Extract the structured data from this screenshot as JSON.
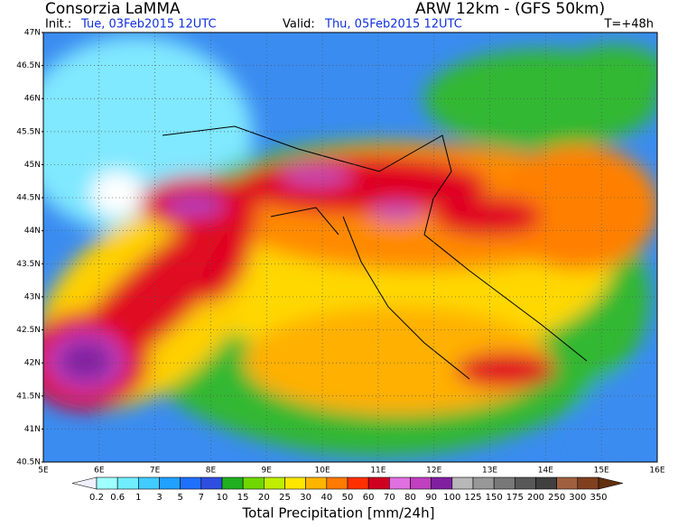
{
  "header": {
    "title": "Consorzia LaMMA",
    "model": "ARW 12km - (GFS 50km)",
    "init_label": "Init.:",
    "init": "Tue, 03Feb2015 12UTC",
    "valid_label": "Valid:",
    "valid": "Thu, 05Feb2015 12UTC",
    "lead": "T=+48h"
  },
  "map": {
    "lat_ticks": [
      "47N",
      "46.5N",
      "46N",
      "45.5N",
      "45N",
      "44.5N",
      "44N",
      "43.5N",
      "43N",
      "42.5N",
      "42N",
      "41.5N",
      "41N",
      "40.5N"
    ],
    "lon_ticks": [
      "5E",
      "6E",
      "7E",
      "8E",
      "9E",
      "10E",
      "11E",
      "12E",
      "13E",
      "14E",
      "15E",
      "16E"
    ]
  },
  "colorbar": {
    "title": "Total Precipitation [mm/24h]",
    "labels": [
      "0.2",
      "0.6",
      "1",
      "3",
      "5",
      "7",
      "10",
      "15",
      "20",
      "25",
      "30",
      "40",
      "50",
      "60",
      "70",
      "80",
      "90",
      "100",
      "125",
      "150",
      "175",
      "200",
      "250",
      "300",
      "350"
    ],
    "colors": [
      "#f0f0ff",
      "#a0ffff",
      "#70eeff",
      "#40ccff",
      "#20a0ff",
      "#2070ff",
      "#2f4ee0",
      "#20b020",
      "#70d800",
      "#c0ee00",
      "#ffe600",
      "#ffb400",
      "#ff7a00",
      "#ff3000",
      "#d00020",
      "#e070e0",
      "#c040c0",
      "#8020a0",
      "#b8b8b8",
      "#989898",
      "#787878",
      "#585858",
      "#404040",
      "#a06040",
      "#804020",
      "#603010"
    ]
  }
}
